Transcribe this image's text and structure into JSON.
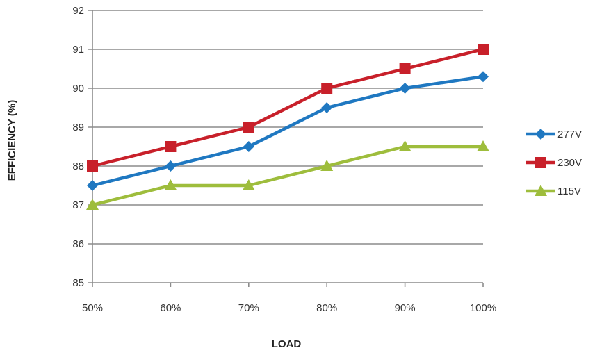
{
  "chart_data": {
    "type": "line",
    "title": "",
    "xlabel": "LOAD",
    "ylabel": "EFFICIENCY (%)",
    "categories": [
      "50%",
      "60%",
      "70%",
      "80%",
      "90%",
      "100%"
    ],
    "ylim": [
      85,
      92
    ],
    "yticks": [
      "85",
      "86",
      "87",
      "88",
      "89",
      "90",
      "91",
      "92"
    ],
    "grid": "horizontal",
    "legend_position": "right",
    "series": [
      {
        "name": "277V",
        "color": "#1f78c1",
        "marker": "diamond",
        "values": [
          87.5,
          88.0,
          88.5,
          89.5,
          90.0,
          90.3
        ]
      },
      {
        "name": "230V",
        "color": "#c8202a",
        "marker": "square",
        "values": [
          88.0,
          88.5,
          89.0,
          90.0,
          90.5,
          91.0
        ]
      },
      {
        "name": "115V",
        "color": "#9ebd3c",
        "marker": "triangle",
        "values": [
          87.0,
          87.5,
          87.5,
          88.0,
          88.5,
          88.5
        ]
      }
    ]
  }
}
